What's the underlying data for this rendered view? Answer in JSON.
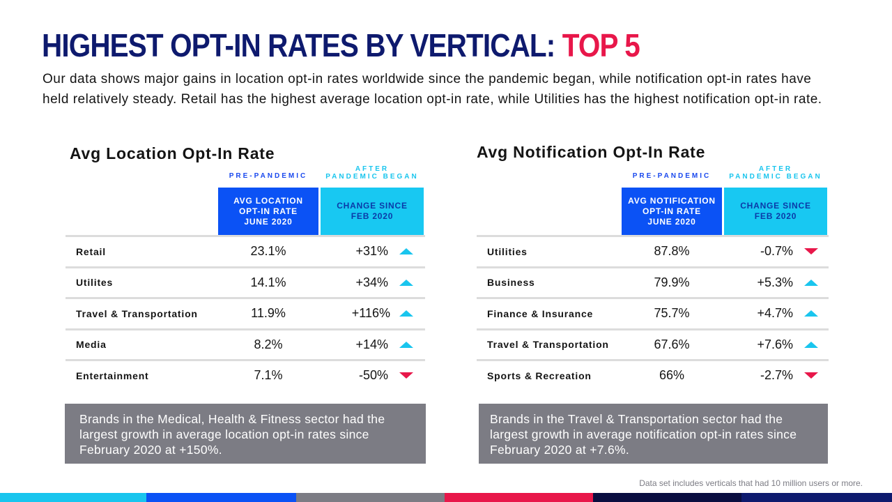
{
  "title": {
    "main": "HIGHEST OPT-IN RATES BY VERTICAL:",
    "accent": "TOP 5"
  },
  "intro": "Our data shows major gains in location opt-in rates worldwide since the pandemic began, while notification opt-in rates have held relatively steady. Retail has the highest average location opt-in rate, while Utilities has the highest notification opt-in rate.",
  "location": {
    "title": "Avg Location Opt-In Rate",
    "pre_label": "PRE-PANDEMIC",
    "post_label_1": "AFTER",
    "post_label_2": "PANDEMIC BEGAN",
    "col1_l1": "AVG LOCATION",
    "col1_l2": "OPT-IN RATE",
    "col1_l3": "JUNE 2020",
    "col2_l1": "CHANGE SINCE",
    "col2_l2": "FEB 2020",
    "rows": [
      {
        "name": "Retail",
        "value": "23.1%",
        "change": "+31%",
        "trend": "up"
      },
      {
        "name": "Utilites",
        "value": "14.1%",
        "change": "+34%",
        "trend": "up"
      },
      {
        "name": "Travel & Transportation",
        "value": "11.9%",
        "change": "+116%",
        "trend": "up"
      },
      {
        "name": "Media",
        "value": "8.2%",
        "change": "+14%",
        "trend": "up"
      },
      {
        "name": "Entertainment",
        "value": "7.1%",
        "change": "-50%",
        "trend": "down"
      }
    ],
    "note": "Brands in the Medical, Health & Fitness sector had the largest growth in average location opt-in rates since February 2020 at +150%."
  },
  "notification": {
    "title": "Avg Notification Opt-In Rate",
    "pre_label": "PRE-PANDEMIC",
    "post_label_1": "AFTER",
    "post_label_2": "PANDEMIC BEGAN",
    "col1_l1": "AVG NOTIFICATION",
    "col1_l2": "OPT-IN RATE",
    "col1_l3": "JUNE 2020",
    "col2_l1": "CHANGE SINCE",
    "col2_l2": "FEB 2020",
    "rows": [
      {
        "name": "Utilities",
        "value": "87.8%",
        "change": "-0.7%",
        "trend": "down"
      },
      {
        "name": "Business",
        "value": "79.9%",
        "change": "+5.3%",
        "trend": "up"
      },
      {
        "name": "Finance & Insurance",
        "value": "75.7%",
        "change": "+4.7%",
        "trend": "up"
      },
      {
        "name": "Travel & Transportation",
        "value": "67.6%",
        "change": "+7.6%",
        "trend": "up"
      },
      {
        "name": "Sports & Recreation",
        "value": "66%",
        "change": "-2.7%",
        "trend": "down"
      }
    ],
    "note": "Brands in the Travel & Transportation sector had the largest growth in average notification opt-in rates since February 2020 at +7.6%."
  },
  "footnote": "Data set includes verticals that had 10 million users or more.",
  "colors": {
    "navy": "#0e1a6e",
    "accent_red": "#e8174a",
    "blue": "#0b52f5",
    "cyan": "#18c8f2",
    "gray": "#7c7c84",
    "bar": [
      "#19c5ee",
      "#0b52f5",
      "#7c7c84",
      "#e8174a",
      "#0a0e40",
      "#0e1a6e"
    ]
  }
}
